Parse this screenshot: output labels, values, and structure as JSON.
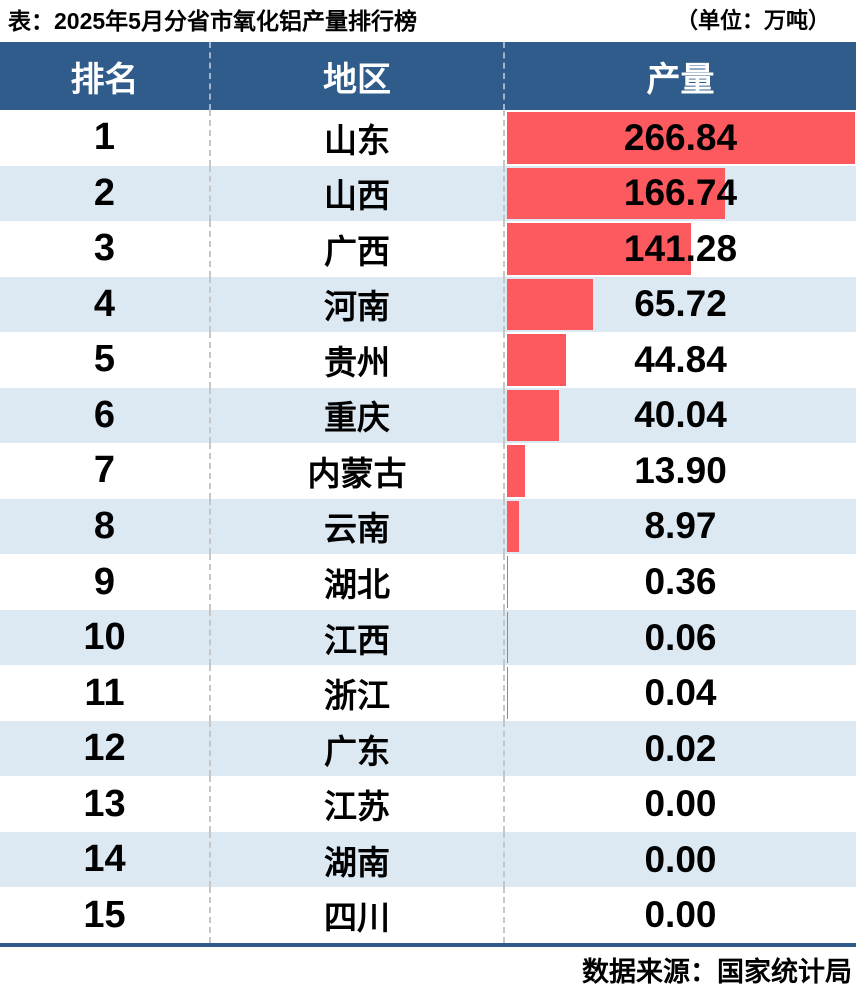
{
  "title_bar": {
    "title": "表：2025年5月分省市氧化铝产量排行榜",
    "unit": "（单位：万吨）"
  },
  "table": {
    "headers": {
      "rank": "排名",
      "region": "地区",
      "output": "产量"
    }
  },
  "rows": [
    {
      "rank": "1",
      "region": "山东",
      "value": "266.84"
    },
    {
      "rank": "2",
      "region": "山西",
      "value": "166.74"
    },
    {
      "rank": "3",
      "region": "广西",
      "value": "141.28"
    },
    {
      "rank": "4",
      "region": "河南",
      "value": "65.72"
    },
    {
      "rank": "5",
      "region": "贵州",
      "value": "44.84"
    },
    {
      "rank": "6",
      "region": "重庆",
      "value": "40.04"
    },
    {
      "rank": "7",
      "region": "内蒙古",
      "value": "13.90"
    },
    {
      "rank": "8",
      "region": "云南",
      "value": "8.97"
    },
    {
      "rank": "9",
      "region": "湖北",
      "value": "0.36"
    },
    {
      "rank": "10",
      "region": "江西",
      "value": "0.06"
    },
    {
      "rank": "11",
      "region": "浙江",
      "value": "0.04"
    },
    {
      "rank": "12",
      "region": "广东",
      "value": "0.02"
    },
    {
      "rank": "13",
      "region": "江苏",
      "value": "0.00"
    },
    {
      "rank": "14",
      "region": "湖南",
      "value": "0.00"
    },
    {
      "rank": "15",
      "region": "四川",
      "value": "0.00"
    }
  ],
  "footer": {
    "source": "数据来源：国家统计局"
  },
  "chart_data": {
    "type": "bar",
    "orientation": "horizontal",
    "title": "2025年5月分省市氧化铝产量排行榜",
    "unit": "万吨",
    "xlabel": "产量",
    "ylabel": "地区",
    "categories": [
      "山东",
      "山西",
      "广西",
      "河南",
      "贵州",
      "重庆",
      "内蒙古",
      "云南",
      "湖北",
      "江西",
      "浙江",
      "广东",
      "江苏",
      "湖南",
      "四川"
    ],
    "values": [
      266.84,
      166.74,
      141.28,
      65.72,
      44.84,
      40.04,
      13.9,
      8.97,
      0.36,
      0.06,
      0.04,
      0.02,
      0.0,
      0.0,
      0.0
    ],
    "xlim": [
      0,
      266.84
    ],
    "grid": false,
    "legend": false,
    "bar_color": "#FC5A5F"
  },
  "colors": {
    "header_bg": "#305C8B",
    "alt_row_bg": "#DCE9F3",
    "bar": "#FC5A5F",
    "footer_rule": "#305C8B",
    "header_text": "#FFFFFF",
    "body_text": "#000000"
  }
}
